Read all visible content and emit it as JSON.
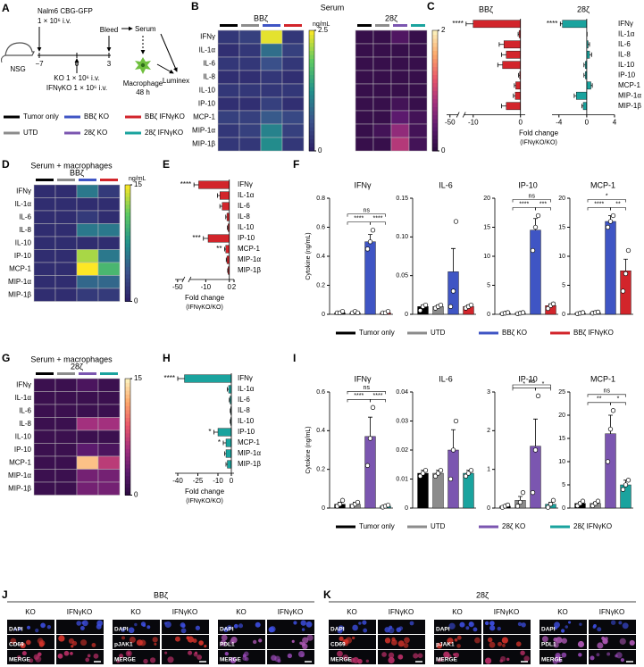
{
  "panel_labels": [
    "A",
    "B",
    "C",
    "D",
    "E",
    "F",
    "G",
    "H",
    "I",
    "J",
    "K"
  ],
  "panel_titles": {
    "B": "Serum",
    "D": "Serum + macrophages",
    "G": "Serum + macrophages"
  },
  "diagram": {
    "injection": "Nalm6 CBG-GFP",
    "injection_dose": "1 × 10⁶ i.v.",
    "mouse": "NSG",
    "timeline": [
      "−7",
      "0",
      "3"
    ],
    "bleed": "Bleed",
    "serum": "Serum",
    "readout": "Luminex",
    "cell": "Macrophage",
    "duration": "48 h",
    "treatments": [
      "KO 1 × 10⁶ i.v.",
      "IFNγKO 1 × 10⁶ i.v."
    ]
  },
  "legends": {
    "A": [
      {
        "name": "Tumor only",
        "color": "#000000"
      },
      {
        "name": "BBζ KO",
        "color": "#3f55c4"
      },
      {
        "name": "BBζ IFNγKO",
        "color": "#d2252b"
      },
      {
        "name": "UTD",
        "color": "#8c8c8c"
      },
      {
        "name": "28ζ KO",
        "color": "#7b56b0"
      },
      {
        "name": "28ζ IFNγKO",
        "color": "#1aa39e"
      }
    ],
    "F": [
      {
        "name": "Tumor only",
        "color": "#000000"
      },
      {
        "name": "UTD",
        "color": "#8c8c8c"
      },
      {
        "name": "BBζ KO",
        "color": "#3f55c4"
      },
      {
        "name": "BBζ IFNγKO",
        "color": "#d2252b"
      }
    ],
    "I": [
      {
        "name": "Tumor only",
        "color": "#000000"
      },
      {
        "name": "UTD",
        "color": "#8c8c8c"
      },
      {
        "name": "28ζ KO",
        "color": "#7b56b0"
      },
      {
        "name": "28ζ IFNγKO",
        "color": "#1aa39e"
      }
    ]
  },
  "chart_data": [
    {
      "type": "heatmap",
      "title": "BBζ",
      "rows": [
        "IFNγ",
        "IL-1α",
        "IL-6",
        "IL-8",
        "IL-10",
        "IP-10",
        "MCP-1",
        "MIP-1α",
        "MIP-1β"
      ],
      "column_colors": [
        "#000000",
        "#8c8c8c",
        "#3f55c4",
        "#d2252b"
      ],
      "colorscale": "viridis",
      "clim": [
        0,
        2.5
      ],
      "cticks": [
        0,
        2.5
      ],
      "cbar_label": "ng/mL",
      "values": [
        [
          0.3,
          0.4,
          2.4,
          0.3
        ],
        [
          0.2,
          0.3,
          0.9,
          0.4
        ],
        [
          0.3,
          0.3,
          0.6,
          0.3
        ],
        [
          0.2,
          0.2,
          0.3,
          0.2
        ],
        [
          0.3,
          0.3,
          0.3,
          0.3
        ],
        [
          0.2,
          0.2,
          0.4,
          0.2
        ],
        [
          0.4,
          0.4,
          0.7,
          0.5
        ],
        [
          0.3,
          0.4,
          1.1,
          0.4
        ],
        [
          0.3,
          0.3,
          1.2,
          0.3
        ]
      ]
    },
    {
      "type": "heatmap",
      "title": "28ζ",
      "column_colors": [
        "#000000",
        "#8c8c8c",
        "#7b56b0",
        "#1aa39e"
      ],
      "colorscale": "magma",
      "clim": [
        0,
        2
      ],
      "cticks": [
        0,
        2
      ],
      "values": [
        [
          0.1,
          0.1,
          0.3,
          0.1
        ],
        [
          0.1,
          0.1,
          0.1,
          0.1
        ],
        [
          0.1,
          0.1,
          0.1,
          0.1
        ],
        [
          0.1,
          0.1,
          0.1,
          0.1
        ],
        [
          0.1,
          0.1,
          0.1,
          0.1
        ],
        [
          0.1,
          0.1,
          0.2,
          0.1
        ],
        [
          0.1,
          0.1,
          0.4,
          0.2
        ],
        [
          0.1,
          0.2,
          0.7,
          0.2
        ],
        [
          0.1,
          0.1,
          0.9,
          0.2
        ]
      ]
    },
    {
      "type": "hbar",
      "title": "BBζ",
      "color": "#d2252b",
      "values": [
        -10,
        -0.3,
        -3.5,
        -3,
        -3.8,
        -0.2,
        -1,
        -1.1,
        -3
      ],
      "errors": [
        1.5,
        0.2,
        1,
        1,
        1,
        0.2,
        0.3,
        0.4,
        1
      ],
      "stars": [
        "****",
        null,
        null,
        null,
        null,
        null,
        null,
        null,
        null
      ],
      "xlim": [
        -52,
        1
      ],
      "xbreak": [
        -45,
        -12
      ],
      "xticks": [
        -50,
        -10,
        0
      ]
    },
    {
      "type": "hbar",
      "title": "28ζ",
      "color": "#1aa39e",
      "categories": [
        "IFNγ",
        "IL-1α",
        "IL-6",
        "IL-8",
        "IL-10",
        "IP-10",
        "MCP-1",
        "MIP-1α",
        "MIP-1β"
      ],
      "values": [
        -3.5,
        0,
        0.2,
        0.4,
        -0.2,
        -0.2,
        0.6,
        -1.5,
        -0.5
      ],
      "errors": [
        0.3,
        0.05,
        0.2,
        0.3,
        0.2,
        0.2,
        0.2,
        0.3,
        0.2
      ],
      "stars": [
        "****",
        null,
        null,
        null,
        null,
        null,
        null,
        null,
        null
      ],
      "xlim": [
        -5,
        4
      ],
      "xticks": [
        -4,
        0,
        4
      ],
      "xlabel": "Fold change",
      "xlabel_note": "(IFNγKO/KO)"
    },
    {
      "type": "heatmap",
      "title": "BBζ",
      "rows": [
        "IFNγ",
        "IL-1α",
        "IL-6",
        "IL-8",
        "IL-10",
        "IP-10",
        "MCP-1",
        "MIP-1α",
        "MIP-1β"
      ],
      "column_colors": [
        "#000000",
        "#8c8c8c",
        "#3f55c4",
        "#d2252b"
      ],
      "colorscale": "viridis",
      "clim": [
        0,
        15
      ],
      "cticks": [
        0,
        15
      ],
      "cbar_label": "ng/mL",
      "values": [
        [
          1,
          1,
          6,
          2
        ],
        [
          1,
          1,
          1,
          1
        ],
        [
          1,
          1,
          2,
          1
        ],
        [
          1,
          1,
          6,
          6
        ],
        [
          1,
          1,
          1,
          1
        ],
        [
          1,
          1,
          13,
          6
        ],
        [
          1,
          1,
          15,
          10
        ],
        [
          1,
          1,
          5,
          5
        ],
        [
          1,
          1,
          2,
          2
        ]
      ]
    },
    {
      "type": "hbar",
      "color": "#d2252b",
      "categories": [
        "IFNγ",
        "IL-1α",
        "IL-6",
        "IL-8",
        "IL-10",
        "IP-10",
        "MCP-1",
        "MIP-1α",
        "MIP-1β"
      ],
      "values": [
        -13,
        -4,
        -3,
        -1,
        -0.5,
        -9,
        -1.5,
        -1,
        -0.5
      ],
      "errors": [
        2,
        1,
        1,
        0.5,
        0.3,
        2,
        0.5,
        0.3,
        0.2
      ],
      "stars": [
        "****",
        null,
        null,
        null,
        null,
        "***",
        "**",
        null,
        null
      ],
      "xlim": [
        -52,
        2
      ],
      "xbreak": [
        -45,
        -17
      ],
      "xticks": [
        -50,
        -10,
        0,
        2
      ],
      "xlabel": "Fold change",
      "xlabel_note": "(IFNγKO/KO)"
    },
    {
      "type": "bar",
      "title": "IFNγ",
      "ylabel": "Cytokine (ng/mL)",
      "ylim": [
        0,
        0.8
      ],
      "yticks": [
        0,
        0.2,
        0.4,
        0.6,
        0.8
      ],
      "values": [
        0.01,
        0.01,
        0.5,
        0.01
      ],
      "errors": [
        0.005,
        0.005,
        0.05,
        0.005
      ],
      "points": [
        [
          0.01,
          0.01,
          0.02
        ],
        [
          0.01,
          0.02,
          0.01
        ],
        [
          0.45,
          0.5,
          0.58
        ],
        [
          0.01,
          0.01,
          0.02
        ]
      ],
      "significance": [
        "ns",
        "****",
        "****"
      ]
    },
    {
      "type": "bar",
      "title": "IL-6",
      "ylim": [
        0,
        0.15
      ],
      "yticks": [
        0,
        0.05,
        {
          "value": 0.1,
          "label": "0.10"
        },
        0.15
      ],
      "values": [
        0.01,
        0.01,
        0.055,
        0.01
      ],
      "errors": [
        0.002,
        0.002,
        0.03,
        0.002
      ],
      "points": [
        [
          0.005,
          0.01,
          0.012
        ],
        [
          0.008,
          0.01,
          0.012
        ],
        [
          0.01,
          0.03,
          0.12
        ],
        [
          0.008,
          0.01,
          0.012
        ]
      ],
      "significance": []
    },
    {
      "type": "bar",
      "title": "IP-10",
      "ylim": [
        0,
        20
      ],
      "yticks": [
        0,
        5,
        10,
        15,
        20
      ],
      "values": [
        0.2,
        0.2,
        14.5,
        1.5
      ],
      "errors": [
        0.1,
        0.1,
        2,
        0.3
      ],
      "points": [
        [
          0.1,
          0.2,
          0.3
        ],
        [
          0.1,
          0.2,
          0.3
        ],
        [
          11,
          15,
          17
        ],
        [
          1,
          1.5,
          1.8
        ]
      ],
      "significance": [
        "ns",
        "****",
        "***"
      ]
    },
    {
      "type": "bar",
      "title": "MCP-1",
      "ylim": [
        0,
        20
      ],
      "yticks": [
        0,
        5,
        10,
        15,
        20
      ],
      "values": [
        0.2,
        0.3,
        16,
        7.5
      ],
      "errors": [
        0.1,
        0.1,
        1,
        2
      ],
      "points": [
        [
          0.1,
          0.2,
          0.3
        ],
        [
          0.2,
          0.3,
          0.4
        ],
        [
          15,
          16,
          17
        ],
        [
          4,
          7,
          11
        ]
      ],
      "significance": [
        "*",
        "****",
        "**"
      ]
    },
    {
      "type": "heatmap",
      "title": "28ζ",
      "rows": [
        "IFNγ",
        "IL-1α",
        "IL-6",
        "IL-8",
        "IL-10",
        "IP-10",
        "MCP-1",
        "MIP-1α",
        "MIP-1β"
      ],
      "column_colors": [
        "#000000",
        "#8c8c8c",
        "#7b56b0",
        "#1aa39e"
      ],
      "colorscale": "magma",
      "clim": [
        0,
        15
      ],
      "cticks": [
        0,
        15
      ],
      "values": [
        [
          1,
          1,
          2,
          1
        ],
        [
          1,
          1,
          1,
          1
        ],
        [
          1,
          1,
          1,
          1
        ],
        [
          1,
          1,
          6,
          6
        ],
        [
          1,
          1,
          1,
          1
        ],
        [
          1,
          1,
          3,
          2
        ],
        [
          1,
          1,
          13,
          7
        ],
        [
          1,
          1,
          4,
          4
        ],
        [
          1,
          1,
          4,
          4
        ]
      ]
    },
    {
      "type": "hbar",
      "color": "#1aa39e",
      "categories": [
        "IFNγ",
        "IL-1α",
        "IL-6",
        "IL-8",
        "IL-10",
        "IP-10",
        "MCP-1",
        "MIP-1α",
        "MIP-1β"
      ],
      "values": [
        -35,
        -2,
        -1,
        -0.5,
        -0.5,
        -10,
        -4,
        -4,
        -3
      ],
      "errors": [
        5,
        1,
        0.5,
        0.3,
        0.3,
        3,
        2,
        1,
        1
      ],
      "stars": [
        "****",
        null,
        null,
        null,
        null,
        "*",
        "*",
        null,
        null
      ],
      "xlim": [
        -42,
        2
      ],
      "xticks": [
        -40,
        -25,
        -10,
        0
      ],
      "xlabel": "Fold change",
      "xlabel_note": "(IFNγKO/KO)"
    },
    {
      "type": "bar",
      "title": "IFNγ",
      "ylabel": "Cytokine (ng/mL)",
      "ylim": [
        0,
        0.6
      ],
      "yticks": [
        0,
        0.2,
        0.4,
        0.6
      ],
      "values": [
        0.02,
        0.02,
        0.37,
        0.01
      ],
      "errors": [
        0.01,
        0.01,
        0.1,
        0.005
      ],
      "points": [
        [
          0.01,
          0.02,
          0.04
        ],
        [
          0.01,
          0.02,
          0.03
        ],
        [
          0.22,
          0.36,
          0.52
        ],
        [
          0.005,
          0.01,
          0.015
        ]
      ],
      "significance": [
        "ns",
        "****",
        "****"
      ]
    },
    {
      "type": "bar",
      "title": "IL-6",
      "ylim": [
        0,
        0.04
      ],
      "yticks": [
        0,
        0.01,
        0.02,
        0.03,
        0.04
      ],
      "values": [
        0.012,
        0.012,
        0.02,
        0.012
      ],
      "errors": [
        0.001,
        0.001,
        0.007,
        0.001
      ],
      "points": [
        [
          0.011,
          0.012,
          0.013
        ],
        [
          0.011,
          0.012,
          0.013
        ],
        [
          0.01,
          0.02,
          0.03
        ],
        [
          0.011,
          0.012,
          0.013
        ]
      ],
      "significance": []
    },
    {
      "type": "bar",
      "title": "IP-10",
      "ylim": [
        0,
        3
      ],
      "yticks": [
        0,
        1,
        2,
        3
      ],
      "values": [
        0.05,
        0.2,
        1.6,
        0.1
      ],
      "errors": [
        0.02,
        0.1,
        0.7,
        0.05
      ],
      "points": [
        [
          0.02,
          0.05,
          0.08
        ],
        [
          0.05,
          0.15,
          0.4
        ],
        [
          0.4,
          1.5,
          2.9
        ],
        [
          0.02,
          0.1,
          0.2
        ]
      ],
      "significance": [
        "ns",
        "*",
        "*"
      ]
    },
    {
      "type": "bar",
      "title": "MCP-1",
      "ylim": [
        0,
        25
      ],
      "yticks": [
        0,
        5,
        10,
        15,
        20,
        25
      ],
      "values": [
        1,
        1,
        16,
        5
      ],
      "errors": [
        0.3,
        0.3,
        4,
        1
      ],
      "points": [
        [
          0.5,
          1,
          1.5
        ],
        [
          0.5,
          1,
          1.5
        ],
        [
          10,
          17,
          21
        ],
        [
          4,
          5,
          6
        ]
      ],
      "significance": [
        "ns",
        "**",
        "*"
      ]
    }
  ],
  "micrographs": {
    "J": {
      "title": "BBζ",
      "groups": [
        {
          "columns": [
            "KO",
            "IFNγKO"
          ],
          "rows": [
            "DAPI",
            "CD69",
            "MERGE"
          ]
        },
        {
          "columns": [
            "KO",
            "IFNγKO"
          ],
          "rows": [
            "DAPI",
            "pJAK1",
            "MERGE"
          ]
        },
        {
          "columns": [
            "KO",
            "IFNγKO"
          ],
          "rows": [
            "DAPI",
            "PDL1",
            "MERGE"
          ]
        }
      ]
    },
    "K": {
      "title": "28ζ",
      "groups": [
        {
          "columns": [
            "KO",
            "IFNγKO"
          ],
          "rows": [
            "DAPI",
            "CD69",
            "MERGE"
          ]
        },
        {
          "columns": [
            "KO",
            "IFNγKO"
          ],
          "rows": [
            "DAPI",
            "pJAK1",
            "MERGE"
          ]
        },
        {
          "columns": [
            "KO",
            "IFNγKO"
          ],
          "rows": [
            "DAPI",
            "PDL1",
            "MERGE"
          ]
        }
      ]
    }
  }
}
